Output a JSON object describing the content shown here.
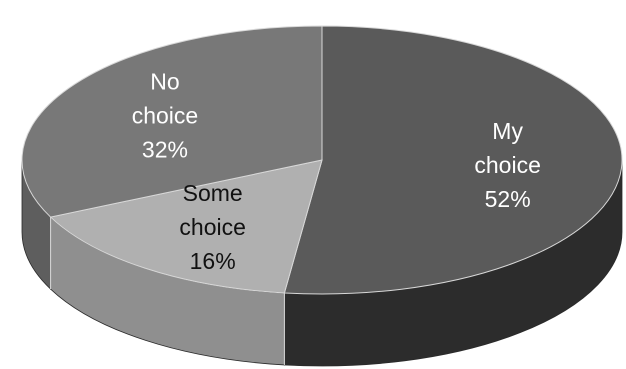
{
  "chart_data": {
    "type": "pie",
    "style": "3d",
    "title": "",
    "legend": "none",
    "slices": [
      {
        "label": "My choice",
        "value": 52,
        "percent_text": "52%",
        "color": "#5a5a5a",
        "side_color": "#2c2c2c",
        "text_color": "#ffffff"
      },
      {
        "label": "Some choice",
        "value": 16,
        "percent_text": "16%",
        "color": "#b0b0b0",
        "side_color": "#8f8f8f",
        "text_color": "#111111"
      },
      {
        "label": "No choice",
        "value": 32,
        "percent_text": "32%",
        "color": "#787878",
        "side_color": "#5e5e5e",
        "text_color": "#ffffff"
      }
    ]
  }
}
